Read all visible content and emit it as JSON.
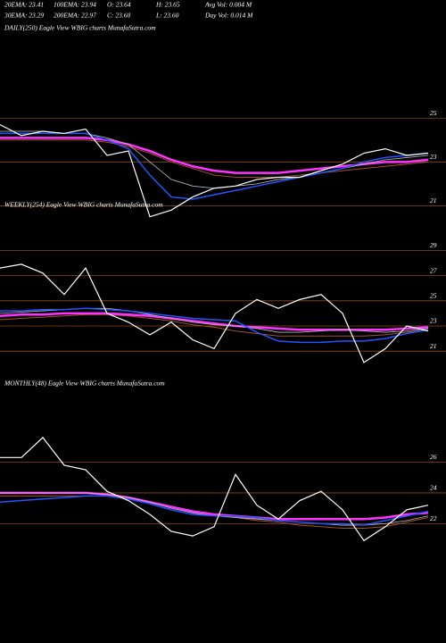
{
  "header": [
    [
      "20EMA: 23.41",
      "100EMA: 23.94",
      "O: 23.64",
      "H: 23.65",
      "Avg Vol: 0.004  M"
    ],
    [
      "30EMA: 23.29",
      "200EMA: 22.97",
      "C: 23.60",
      "L: 23.60",
      "Day Vol: 0.014  M"
    ]
  ],
  "chart_data": [
    {
      "type": "line",
      "title": "DAILY(250) Eagle  View  WBIG charts MunafaSutra.com",
      "categories": [
        null,
        null,
        null,
        null,
        null,
        null,
        null,
        null,
        null,
        null,
        null,
        null,
        null,
        null,
        null,
        null,
        null,
        null,
        null,
        null,
        null
      ],
      "ylim": [
        20.2,
        25.5
      ],
      "yticks": [
        21,
        23,
        25
      ],
      "grid": true,
      "series": [
        {
          "color": "#a0522d",
          "values": [
            24.0,
            24.0,
            24.0,
            24.0,
            24.0,
            23.9,
            23.7,
            23.4,
            23.0,
            22.7,
            22.4,
            22.3,
            22.3,
            22.3,
            22.4,
            22.5,
            22.6,
            22.7,
            22.8,
            22.9,
            23.0
          ]
        },
        {
          "color": "#ff33ff",
          "values": [
            24.1,
            24.1,
            24.1,
            24.1,
            24.1,
            24.0,
            23.8,
            23.5,
            23.1,
            22.8,
            22.6,
            22.5,
            22.5,
            22.5,
            22.6,
            22.7,
            22.8,
            22.9,
            23.0,
            23.0,
            23.1
          ]
        },
        {
          "color": "#bbbbbb",
          "values": [
            24.4,
            24.4,
            24.4,
            24.3,
            24.3,
            24.1,
            23.8,
            23.0,
            22.2,
            21.9,
            21.8,
            21.9,
            22.0,
            22.2,
            22.3,
            22.5,
            22.7,
            22.9,
            23.1,
            23.2,
            23.3
          ]
        },
        {
          "color": "#2255ff",
          "values": [
            24.3,
            24.3,
            24.3,
            24.3,
            24.3,
            24.0,
            23.6,
            22.4,
            21.4,
            21.3,
            21.5,
            21.7,
            21.9,
            22.1,
            22.3,
            22.5,
            22.7,
            23.0,
            23.2,
            23.3,
            23.4
          ]
        },
        {
          "color": "#ffffff",
          "values": [
            24.7,
            24.2,
            24.4,
            24.3,
            24.5,
            23.3,
            23.5,
            20.5,
            20.8,
            21.4,
            21.8,
            21.9,
            22.2,
            22.3,
            22.3,
            22.6,
            22.9,
            23.4,
            23.6,
            23.3,
            23.4
          ]
        }
      ]
    },
    {
      "type": "line",
      "title": "WEEKLY(254) Eagle  View  WBIG charts MunafaSutra.com",
      "categories": [
        null,
        null,
        null,
        null,
        null,
        null,
        null,
        null,
        null,
        null,
        null,
        null,
        null,
        null,
        null,
        null,
        null,
        null,
        null,
        null,
        null
      ],
      "ylim": [
        19.1,
        30.8
      ],
      "yticks": [
        21,
        23,
        25,
        27,
        29
      ],
      "grid": true,
      "series": [
        {
          "color": "#a0522d",
          "values": [
            23.5,
            23.6,
            23.7,
            23.8,
            23.9,
            23.9,
            23.8,
            23.6,
            23.4,
            23.1,
            22.9,
            22.6,
            22.4,
            22.2,
            22.2,
            22.2,
            22.2,
            22.2,
            22.3,
            22.5,
            22.7
          ]
        },
        {
          "color": "#ff33ff",
          "values": [
            23.8,
            23.9,
            23.9,
            24.0,
            24.0,
            24.0,
            23.9,
            23.8,
            23.6,
            23.4,
            23.2,
            23.0,
            22.9,
            22.8,
            22.7,
            22.7,
            22.7,
            22.7,
            22.7,
            22.8,
            22.9
          ]
        },
        {
          "color": "#bbbbbb",
          "values": [
            24.0,
            24.1,
            24.2,
            24.3,
            24.4,
            24.4,
            24.2,
            23.9,
            23.6,
            23.3,
            23.1,
            23.0,
            22.8,
            22.5,
            22.5,
            22.6,
            22.7,
            22.6,
            22.5,
            22.6,
            22.8
          ]
        },
        {
          "color": "#2255ff",
          "values": [
            24.2,
            24.2,
            24.3,
            24.3,
            24.4,
            24.3,
            24.2,
            24.0,
            23.8,
            23.6,
            23.5,
            23.4,
            22.5,
            21.8,
            21.7,
            21.7,
            21.8,
            21.8,
            22.0,
            22.4,
            22.7
          ]
        },
        {
          "color": "#ffffff",
          "values": [
            27.6,
            27.9,
            27.2,
            25.5,
            27.6,
            24.0,
            23.3,
            22.3,
            23.3,
            21.9,
            21.2,
            24.0,
            25.1,
            24.4,
            25.1,
            25.5,
            24.0,
            20.1,
            21.2,
            23.0,
            22.6
          ]
        }
      ]
    },
    {
      "type": "line",
      "title": "MONTHLY(48) Eagle  View  WBIG charts MunafaSutra.com",
      "categories": [
        null,
        null,
        null,
        null,
        null,
        null,
        null,
        null,
        null,
        null,
        null,
        null,
        null,
        null,
        null,
        null,
        null,
        null,
        null,
        null,
        null
      ],
      "ylim": [
        15.4,
        30.5
      ],
      "yticks": [
        22,
        24,
        26
      ],
      "grid": true,
      "series": [
        {
          "color": "#a0522d",
          "values": [
            23.8,
            23.8,
            23.8,
            23.8,
            23.8,
            23.8,
            23.6,
            23.4,
            23.1,
            22.8,
            22.6,
            22.4,
            22.2,
            22.1,
            21.9,
            21.8,
            21.7,
            21.7,
            21.8,
            22.1,
            22.4
          ]
        },
        {
          "color": "#ff33ff",
          "values": [
            24.0,
            24.0,
            24.0,
            24.0,
            24.0,
            23.9,
            23.7,
            23.4,
            23.1,
            22.8,
            22.6,
            22.5,
            22.4,
            22.3,
            22.3,
            22.3,
            22.3,
            22.3,
            22.4,
            22.6,
            22.7
          ]
        },
        {
          "color": "#bbbbbb",
          "values": [
            24.0,
            24.0,
            24.0,
            24.0,
            24.0,
            23.9,
            23.7,
            23.4,
            23.0,
            22.7,
            22.5,
            22.4,
            22.3,
            22.2,
            22.1,
            22.0,
            21.9,
            21.9,
            22.0,
            22.2,
            22.5
          ]
        },
        {
          "color": "#2255ff",
          "values": [
            23.4,
            23.5,
            23.6,
            23.7,
            23.8,
            23.8,
            23.6,
            23.3,
            22.9,
            22.6,
            22.5,
            22.5,
            22.4,
            22.2,
            22.1,
            22.0,
            22.0,
            21.9,
            22.2,
            22.5,
            22.8
          ]
        },
        {
          "color": "#ffffff",
          "values": [
            26.3,
            26.3,
            27.6,
            25.8,
            25.5,
            24.1,
            23.5,
            22.6,
            21.5,
            21.2,
            21.8,
            25.2,
            23.2,
            22.3,
            23.5,
            24.1,
            22.9,
            20.9,
            21.8,
            22.9,
            23.2
          ]
        }
      ]
    }
  ]
}
